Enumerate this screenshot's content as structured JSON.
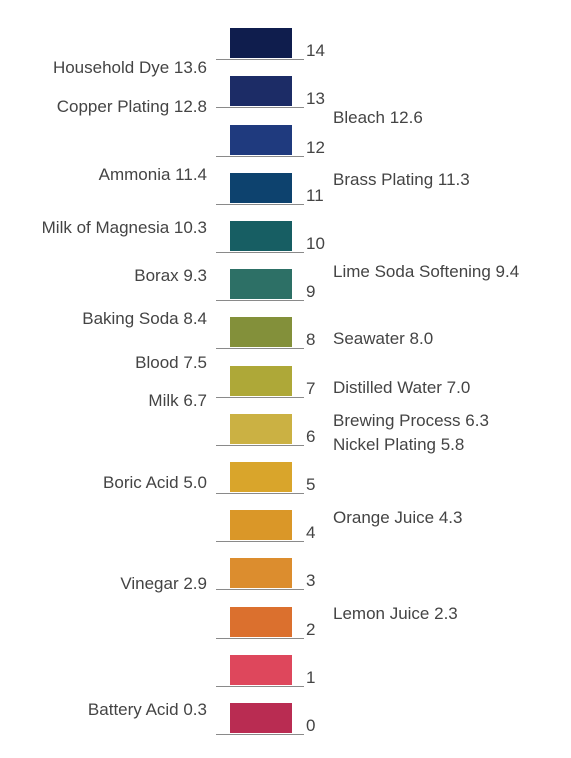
{
  "scale": [
    {
      "value": "14",
      "color": "#0f1d4d"
    },
    {
      "value": "13",
      "color": "#1c2c66"
    },
    {
      "value": "12",
      "color": "#1f3a7e"
    },
    {
      "value": "11",
      "color": "#0d426e"
    },
    {
      "value": "10",
      "color": "#175e63"
    },
    {
      "value": "9",
      "color": "#2d7066"
    },
    {
      "value": "8",
      "color": "#83903a"
    },
    {
      "value": "7",
      "color": "#aea838"
    },
    {
      "value": "6",
      "color": "#cbb143"
    },
    {
      "value": "5",
      "color": "#d9a52b"
    },
    {
      "value": "4",
      "color": "#da9728"
    },
    {
      "value": "3",
      "color": "#dc8d2e"
    },
    {
      "value": "2",
      "color": "#db702e"
    },
    {
      "value": "1",
      "color": "#de475c"
    },
    {
      "value": "0",
      "color": "#b92c52"
    }
  ],
  "left_labels": [
    {
      "text": "Household Dye 13.6",
      "ph": 13.6
    },
    {
      "text": "Copper Plating 12.8",
      "ph": 12.8
    },
    {
      "text": "Ammonia 11.4",
      "ph": 11.4
    },
    {
      "text": "Milk of Magnesia 10.3",
      "ph": 10.3
    },
    {
      "text": "Borax 9.3",
      "ph": 9.3
    },
    {
      "text": "Baking Soda 8.4",
      "ph": 8.4
    },
    {
      "text": "Blood 7.5",
      "ph": 7.5
    },
    {
      "text": "Milk 6.7",
      "ph": 6.7
    },
    {
      "text": "Boric Acid 5.0",
      "ph": 5.0
    },
    {
      "text": "Vinegar 2.9",
      "ph": 2.9
    },
    {
      "text": "Battery Acid 0.3",
      "ph": 0.3
    }
  ],
  "right_labels": [
    {
      "text": "Bleach 12.6",
      "ph": 12.6
    },
    {
      "text": "Brass Plating 11.3",
      "ph": 11.3
    },
    {
      "text": "Lime Soda Softening 9.4",
      "ph": 9.4
    },
    {
      "text": "Seawater 8.0",
      "ph": 8.0
    },
    {
      "text": "Distilled Water 7.0",
      "ph": 7.0
    },
    {
      "text": "Brewing Process 6.3",
      "ph": 6.3
    },
    {
      "text": "Nickel Plating 5.8",
      "ph": 5.8
    },
    {
      "text": "Orange Juice 4.3",
      "ph": 4.3
    },
    {
      "text": "Lemon Juice 2.3",
      "ph": 2.3
    }
  ]
}
